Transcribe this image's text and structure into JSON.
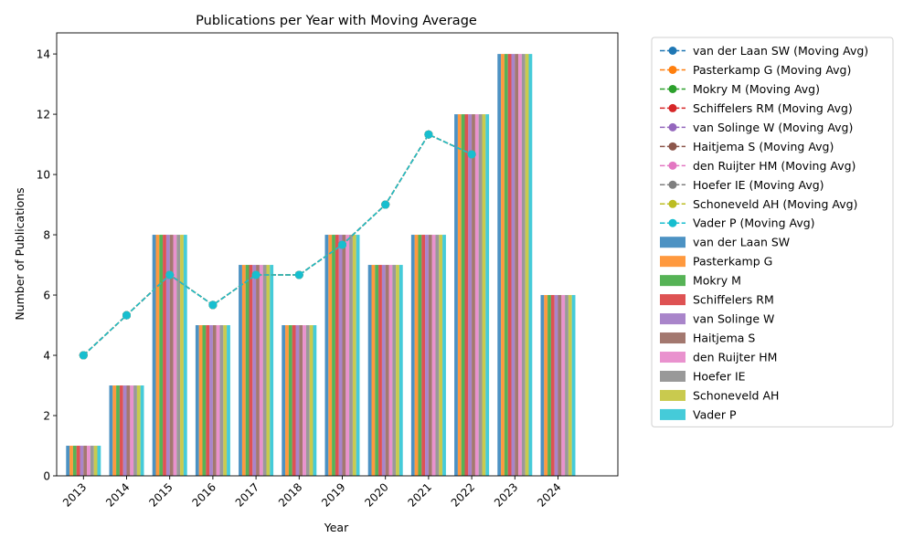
{
  "chart_data": {
    "type": "bar",
    "title": "Publications per Year with Moving Average",
    "xlabel": "Year",
    "ylabel": "Number of Publications",
    "categories": [
      "2013",
      "2014",
      "2015",
      "2016",
      "2017",
      "2018",
      "2019",
      "2020",
      "2021",
      "2022",
      "2023",
      "2024"
    ],
    "ylim": [
      0,
      14.7
    ],
    "yticks": [
      0,
      2,
      4,
      6,
      8,
      10,
      12,
      14
    ],
    "grid": false,
    "legend_position": "outside-top-right",
    "values": [
      1,
      3,
      8,
      5,
      7,
      5,
      8,
      7,
      8,
      12,
      14,
      6
    ],
    "moving_avg_values": [
      4,
      5.33,
      6.67,
      5.67,
      6.67,
      6.67,
      7.67,
      9,
      11.33,
      10.67
    ],
    "series": [
      {
        "name": "van der Laan SW",
        "color": "#1f77b4"
      },
      {
        "name": "Pasterkamp G",
        "color": "#ff7f0e"
      },
      {
        "name": "Mokry M",
        "color": "#2ca02c"
      },
      {
        "name": "Schiffelers RM",
        "color": "#d62728"
      },
      {
        "name": "van Solinge W",
        "color": "#9467bd"
      },
      {
        "name": "Haitjema S",
        "color": "#8c564b"
      },
      {
        "name": "den Ruijter HM",
        "color": "#e377c2"
      },
      {
        "name": "Hoefer IE",
        "color": "#7f7f7f"
      },
      {
        "name": "Schoneveld AH",
        "color": "#bcbd22"
      },
      {
        "name": "Vader P",
        "color": "#17becf"
      }
    ],
    "line_legend_labels": [
      "van der Laan SW (Moving Avg)",
      "Pasterkamp G (Moving Avg)",
      "Mokry M (Moving Avg)",
      "Schiffelers RM (Moving Avg)",
      "van Solinge W (Moving Avg)",
      "Haitjema S (Moving Avg)",
      "den Ruijter HM (Moving Avg)",
      "Hoefer IE (Moving Avg)",
      "Schoneveld AH (Moving Avg)",
      "Vader P (Moving Avg)"
    ]
  }
}
